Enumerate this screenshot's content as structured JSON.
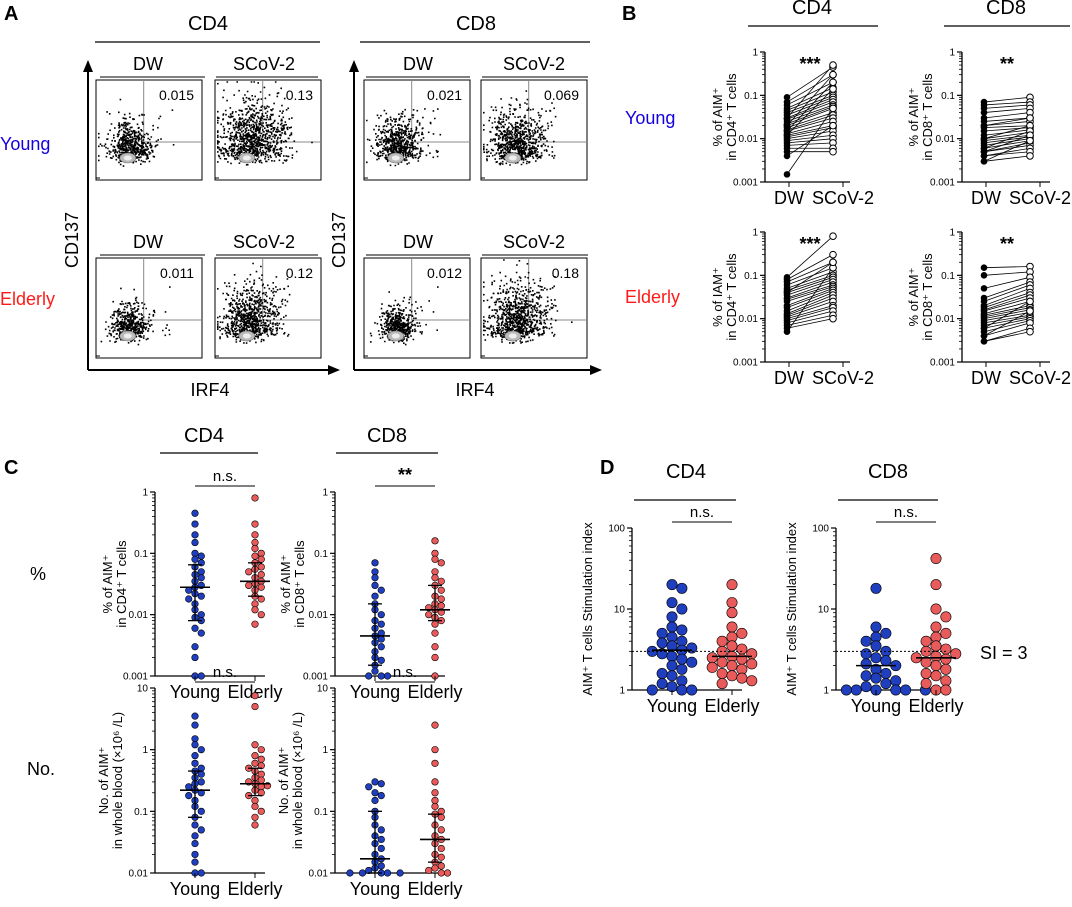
{
  "panels": {
    "A": "A",
    "B": "B",
    "C": "C",
    "D": "D"
  },
  "rows": {
    "young": "Young",
    "elderly": "Elderly"
  },
  "colors": {
    "young": "#1500e0",
    "elderly": "#ff1a1a",
    "young_fill": "#1f3fbf",
    "elderly_fill": "#e95a5a",
    "black": "#000000"
  },
  "flow": {
    "headers": {
      "cd4": "CD4",
      "cd8": "CD8"
    },
    "cols": {
      "dw": "DW",
      "scov2": "SCoV-2"
    },
    "y_axis": "CD137",
    "x_axis": "IRF4",
    "values": {
      "cd4_young_dw": "0.015",
      "cd4_young_scov2": "0.13",
      "cd4_elderly_dw": "0.011",
      "cd4_elderly_scov2": "0.12",
      "cd8_young_dw": "0.021",
      "cd8_young_scov2": "0.069",
      "cd8_elderly_dw": "0.012",
      "cd8_elderly_scov2": "0.18"
    },
    "density": {
      "cd4_young_dw": 0.45,
      "cd4_young_scov2": 1.0,
      "cd4_elderly_dw": 0.35,
      "cd4_elderly_scov2": 0.8,
      "cd8_young_dw": 0.55,
      "cd8_young_scov2": 0.75,
      "cd8_elderly_dw": 0.3,
      "cd8_elderly_scov2": 0.85
    }
  },
  "labels": {
    "cd4": "CD4",
    "cd8": "CD8",
    "dw": "DW",
    "scov2": "SCoV-2",
    "young": "Young",
    "elderly": "Elderly",
    "pct_row": "%",
    "no_row": "No.",
    "si3": "SI = 3",
    "ns": "n.s.",
    "sig3": "***",
    "sig2": "**",
    "b_y_young_cd4": "% of AIM⁺ in CD4⁺ T cells",
    "b_y_young_cd8": "% of AIM⁺ in CD8⁺ T cells",
    "b_y_elderly_cd4": "% of IAM⁺ in CD4⁺ T cells",
    "b_y_elderly_cd8": "% of AIM⁺ in CD8⁺ T cells",
    "c_y_pct_cd4": "% of AIM⁺ in CD4⁺ T cells",
    "c_y_pct_cd8": "% of AIM⁺ in CD8⁺ T cells",
    "c_y_no": "No. of AIM⁺ in whole blood (×10⁶ /L)",
    "d_y": "AIM⁺ T cells Stimulation index"
  },
  "chart_data": [
    {
      "id": "B-young-cd4",
      "type": "paired-scatter",
      "scale": "log",
      "ylim": [
        0.001,
        1
      ],
      "ticks": [
        {
          "v": 0.001,
          "t": "0.001"
        },
        {
          "v": 0.01,
          "t": "0.01"
        },
        {
          "v": 0.1,
          "t": "0.1"
        },
        {
          "v": 1,
          "t": "1"
        }
      ],
      "categories": [
        "DW",
        "SCoV-2"
      ],
      "significance": "***",
      "pairs": [
        [
          0.09,
          0.45
        ],
        [
          0.07,
          0.3
        ],
        [
          0.06,
          0.2
        ],
        [
          0.05,
          0.15
        ],
        [
          0.045,
          0.12
        ],
        [
          0.04,
          0.1
        ],
        [
          0.035,
          0.09
        ],
        [
          0.03,
          0.08
        ],
        [
          0.028,
          0.07
        ],
        [
          0.025,
          0.06
        ],
        [
          0.022,
          0.055
        ],
        [
          0.02,
          0.05
        ],
        [
          0.018,
          0.04
        ],
        [
          0.016,
          0.035
        ],
        [
          0.015,
          0.03
        ],
        [
          0.013,
          0.025
        ],
        [
          0.012,
          0.02
        ],
        [
          0.011,
          0.018
        ],
        [
          0.01,
          0.015
        ],
        [
          0.009,
          0.012
        ],
        [
          0.008,
          0.01
        ],
        [
          0.007,
          0.008
        ],
        [
          0.006,
          0.006
        ],
        [
          0.005,
          0.005
        ],
        [
          0.004,
          0.02
        ],
        [
          0.03,
          0.5
        ],
        [
          0.02,
          0.3
        ],
        [
          0.015,
          0.2
        ],
        [
          0.012,
          0.14
        ],
        [
          0.0015,
          0.05
        ]
      ]
    },
    {
      "id": "B-young-cd8",
      "type": "paired-scatter",
      "scale": "log",
      "ylim": [
        0.001,
        1
      ],
      "ticks": [
        {
          "v": 0.001,
          "t": "0.001"
        },
        {
          "v": 0.01,
          "t": "0.01"
        },
        {
          "v": 0.1,
          "t": "0.1"
        },
        {
          "v": 1,
          "t": "1"
        }
      ],
      "categories": [
        "DW",
        "SCoV-2"
      ],
      "significance": "**",
      "pairs": [
        [
          0.07,
          0.09
        ],
        [
          0.06,
          0.07
        ],
        [
          0.05,
          0.06
        ],
        [
          0.04,
          0.05
        ],
        [
          0.03,
          0.04
        ],
        [
          0.025,
          0.03
        ],
        [
          0.02,
          0.025
        ],
        [
          0.018,
          0.02
        ],
        [
          0.015,
          0.018
        ],
        [
          0.012,
          0.016
        ],
        [
          0.01,
          0.014
        ],
        [
          0.009,
          0.012
        ],
        [
          0.008,
          0.011
        ],
        [
          0.007,
          0.01
        ],
        [
          0.006,
          0.009
        ],
        [
          0.005,
          0.008
        ],
        [
          0.005,
          0.007
        ],
        [
          0.004,
          0.006
        ],
        [
          0.004,
          0.005
        ],
        [
          0.003,
          0.004
        ],
        [
          0.02,
          0.03
        ],
        [
          0.01,
          0.02
        ],
        [
          0.006,
          0.015
        ],
        [
          0.005,
          0.012
        ],
        [
          0.003,
          0.009
        ]
      ]
    },
    {
      "id": "B-elderly-cd4",
      "type": "paired-scatter",
      "scale": "log",
      "ylim": [
        0.001,
        1
      ],
      "ticks": [
        {
          "v": 0.001,
          "t": "0.001"
        },
        {
          "v": 0.01,
          "t": "0.01"
        },
        {
          "v": 0.1,
          "t": "0.1"
        },
        {
          "v": 1,
          "t": "1"
        }
      ],
      "categories": [
        "DW",
        "SCoV-2"
      ],
      "significance": "***",
      "pairs": [
        [
          0.09,
          0.8
        ],
        [
          0.08,
          0.3
        ],
        [
          0.07,
          0.2
        ],
        [
          0.06,
          0.15
        ],
        [
          0.05,
          0.12
        ],
        [
          0.045,
          0.1
        ],
        [
          0.04,
          0.09
        ],
        [
          0.035,
          0.08
        ],
        [
          0.03,
          0.07
        ],
        [
          0.028,
          0.06
        ],
        [
          0.025,
          0.055
        ],
        [
          0.02,
          0.05
        ],
        [
          0.018,
          0.045
        ],
        [
          0.015,
          0.04
        ],
        [
          0.013,
          0.035
        ],
        [
          0.012,
          0.03
        ],
        [
          0.011,
          0.025
        ],
        [
          0.01,
          0.02
        ],
        [
          0.009,
          0.018
        ],
        [
          0.008,
          0.015
        ],
        [
          0.007,
          0.012
        ],
        [
          0.006,
          0.01
        ],
        [
          0.005,
          0.15
        ],
        [
          0.04,
          0.2
        ]
      ]
    },
    {
      "id": "B-elderly-cd8",
      "type": "paired-scatter",
      "scale": "log",
      "ylim": [
        0.001,
        1
      ],
      "ticks": [
        {
          "v": 0.001,
          "t": "0.001"
        },
        {
          "v": 0.01,
          "t": "0.01"
        },
        {
          "v": 0.1,
          "t": "0.1"
        },
        {
          "v": 1,
          "t": "1"
        }
      ],
      "categories": [
        "DW",
        "SCoV-2"
      ],
      "significance": "**",
      "pairs": [
        [
          0.15,
          0.16
        ],
        [
          0.1,
          0.12
        ],
        [
          0.05,
          0.09
        ],
        [
          0.03,
          0.07
        ],
        [
          0.025,
          0.06
        ],
        [
          0.02,
          0.05
        ],
        [
          0.018,
          0.04
        ],
        [
          0.016,
          0.035
        ],
        [
          0.015,
          0.03
        ],
        [
          0.013,
          0.025
        ],
        [
          0.012,
          0.02
        ],
        [
          0.011,
          0.018
        ],
        [
          0.01,
          0.016
        ],
        [
          0.009,
          0.014
        ],
        [
          0.008,
          0.012
        ],
        [
          0.007,
          0.011
        ],
        [
          0.006,
          0.01
        ],
        [
          0.005,
          0.009
        ],
        [
          0.004,
          0.008
        ],
        [
          0.003,
          0.006
        ],
        [
          0.003,
          0.005
        ],
        [
          0.004,
          0.015
        ],
        [
          0.006,
          0.025
        ]
      ]
    },
    {
      "id": "C-pct-cd4",
      "type": "scatter-median-iqr",
      "scale": "log",
      "ylim": [
        0.001,
        1
      ],
      "ticks": [
        {
          "v": 0.001,
          "t": "0.001"
        },
        {
          "v": 0.01,
          "t": "0.01"
        },
        {
          "v": 0.1,
          "t": "0.1"
        },
        {
          "v": 1,
          "t": "1"
        }
      ],
      "categories": [
        "Young",
        "Elderly"
      ],
      "significance": "n.s.",
      "groups": [
        {
          "name": "Young",
          "median": 0.028,
          "q1": 0.008,
          "q3": 0.065,
          "values": [
            0.45,
            0.3,
            0.2,
            0.15,
            0.1,
            0.09,
            0.08,
            0.07,
            0.06,
            0.05,
            0.045,
            0.04,
            0.035,
            0.03,
            0.028,
            0.025,
            0.022,
            0.02,
            0.018,
            0.015,
            0.012,
            0.01,
            0.009,
            0.008,
            0.006,
            0.005,
            0.003,
            0.002,
            0.001,
            0.001
          ]
        },
        {
          "name": "Elderly",
          "median": 0.035,
          "q1": 0.02,
          "q3": 0.07,
          "values": [
            0.8,
            0.3,
            0.2,
            0.15,
            0.12,
            0.1,
            0.09,
            0.08,
            0.07,
            0.06,
            0.055,
            0.05,
            0.045,
            0.04,
            0.035,
            0.032,
            0.03,
            0.028,
            0.025,
            0.02,
            0.018,
            0.015,
            0.012,
            0.01,
            0.007
          ]
        }
      ]
    },
    {
      "id": "C-pct-cd8",
      "type": "scatter-median-iqr",
      "scale": "log",
      "ylim": [
        0.001,
        1
      ],
      "ticks": [
        {
          "v": 0.001,
          "t": "0.001"
        },
        {
          "v": 0.01,
          "t": "0.01"
        },
        {
          "v": 0.1,
          "t": "0.1"
        },
        {
          "v": 1,
          "t": "1"
        }
      ],
      "categories": [
        "Young",
        "Elderly"
      ],
      "significance": "**",
      "groups": [
        {
          "name": "Young",
          "median": 0.0045,
          "q1": 0.0015,
          "q3": 0.015,
          "values": [
            0.07,
            0.05,
            0.04,
            0.03,
            0.025,
            0.02,
            0.015,
            0.012,
            0.01,
            0.008,
            0.007,
            0.006,
            0.005,
            0.0045,
            0.004,
            0.0035,
            0.003,
            0.0025,
            0.002,
            0.0018,
            0.0015,
            0.0012,
            0.001,
            0.001,
            0.001
          ]
        },
        {
          "name": "Elderly",
          "median": 0.012,
          "q1": 0.008,
          "q3": 0.03,
          "values": [
            0.16,
            0.1,
            0.08,
            0.07,
            0.05,
            0.04,
            0.035,
            0.03,
            0.025,
            0.02,
            0.018,
            0.015,
            0.014,
            0.013,
            0.012,
            0.011,
            0.01,
            0.009,
            0.008,
            0.007,
            0.005,
            0.003,
            0.002,
            0.001
          ]
        }
      ]
    },
    {
      "id": "C-no-cd4",
      "type": "scatter-median-iqr",
      "scale": "log",
      "ylim": [
        0.01,
        10
      ],
      "ticks": [
        {
          "v": 0.01,
          "t": "0.01"
        },
        {
          "v": 0.1,
          "t": "0.1"
        },
        {
          "v": 1,
          "t": "1"
        },
        {
          "v": 10,
          "t": "10"
        }
      ],
      "categories": [
        "Young",
        "Elderly"
      ],
      "significance": "n.s.",
      "groups": [
        {
          "name": "Young",
          "median": 0.22,
          "q1": 0.08,
          "q3": 0.45,
          "values": [
            3.5,
            2.5,
            1.5,
            1.2,
            1,
            0.8,
            0.6,
            0.5,
            0.45,
            0.4,
            0.35,
            0.3,
            0.28,
            0.25,
            0.22,
            0.2,
            0.18,
            0.15,
            0.12,
            0.1,
            0.08,
            0.06,
            0.05,
            0.04,
            0.03,
            0.02,
            0.015,
            0.01,
            0.01
          ]
        },
        {
          "name": "Elderly",
          "median": 0.28,
          "q1": 0.18,
          "q3": 0.5,
          "values": [
            7.5,
            5,
            1.2,
            1,
            0.8,
            0.7,
            0.6,
            0.55,
            0.5,
            0.45,
            0.4,
            0.35,
            0.32,
            0.3,
            0.28,
            0.26,
            0.25,
            0.22,
            0.2,
            0.18,
            0.15,
            0.12,
            0.1,
            0.08,
            0.06
          ]
        }
      ]
    },
    {
      "id": "C-no-cd8",
      "type": "scatter-median-iqr",
      "scale": "log",
      "ylim": [
        0.01,
        10
      ],
      "ticks": [
        {
          "v": 0.01,
          "t": "0.01"
        },
        {
          "v": 0.1,
          "t": "0.1"
        },
        {
          "v": 1,
          "t": "1"
        },
        {
          "v": 10,
          "t": "10"
        }
      ],
      "categories": [
        "Young",
        "Elderly"
      ],
      "significance": "n.s.",
      "groups": [
        {
          "name": "Young",
          "median": 0.017,
          "q1": 0.01,
          "q3": 0.1,
          "values": [
            0.3,
            0.28,
            0.25,
            0.2,
            0.18,
            0.15,
            0.1,
            0.08,
            0.06,
            0.05,
            0.04,
            0.035,
            0.03,
            0.025,
            0.02,
            0.017,
            0.015,
            0.013,
            0.012,
            0.011,
            0.01,
            0.01,
            0.01,
            0.01,
            0.01
          ]
        },
        {
          "name": "Elderly",
          "median": 0.035,
          "q1": 0.015,
          "q3": 0.09,
          "values": [
            2.5,
            1,
            0.6,
            0.3,
            0.2,
            0.15,
            0.12,
            0.1,
            0.09,
            0.08,
            0.06,
            0.05,
            0.04,
            0.035,
            0.03,
            0.025,
            0.02,
            0.018,
            0.015,
            0.013,
            0.012,
            0.011,
            0.01,
            0.01
          ]
        }
      ]
    },
    {
      "id": "D-cd4",
      "type": "scatter-median",
      "scale": "log",
      "ylim": [
        1,
        100
      ],
      "ticks": [
        {
          "v": 1,
          "t": "1"
        },
        {
          "v": 10,
          "t": "10"
        },
        {
          "v": 100,
          "t": "100"
        }
      ],
      "categories": [
        "Young",
        "Elderly"
      ],
      "significance": "n.s.",
      "threshold": 3,
      "groups": [
        {
          "name": "Young",
          "median": 3.1,
          "values": [
            20,
            18,
            12,
            10,
            8,
            6,
            5.5,
            5,
            4.5,
            4,
            3.8,
            3.5,
            3.3,
            3.1,
            3,
            2.8,
            2.6,
            2.4,
            2.2,
            2,
            1.8,
            1.6,
            1.5,
            1.3,
            1.2,
            1.1,
            1,
            1,
            1
          ]
        },
        {
          "name": "Elderly",
          "median": 2.6,
          "values": [
            20,
            12,
            9,
            6,
            5,
            4.5,
            4,
            3.5,
            3.2,
            3,
            2.8,
            2.6,
            2.5,
            2.4,
            2.2,
            2.1,
            2,
            1.9,
            1.8,
            1.6,
            1.5,
            1.4,
            1.3,
            1.2
          ]
        }
      ]
    },
    {
      "id": "D-cd8",
      "type": "scatter-median",
      "scale": "log",
      "ylim": [
        1,
        100
      ],
      "ticks": [
        {
          "v": 1,
          "t": "1"
        },
        {
          "v": 10,
          "t": "10"
        },
        {
          "v": 100,
          "t": "100"
        }
      ],
      "categories": [
        "Young",
        "Elderly"
      ],
      "significance": "n.s.",
      "threshold": 3,
      "groups": [
        {
          "name": "Young",
          "median": 2.0,
          "values": [
            18,
            6,
            5,
            4.5,
            4,
            3.5,
            3,
            2.8,
            2.5,
            2.3,
            2.1,
            2,
            1.8,
            1.6,
            1.5,
            1.4,
            1.3,
            1.2,
            1.1,
            1,
            1,
            1,
            1,
            1,
            1
          ]
        },
        {
          "name": "Elderly",
          "median": 2.5,
          "values": [
            42,
            20,
            10,
            8,
            6,
            5,
            4.5,
            4,
            3.5,
            3.2,
            3,
            2.8,
            2.6,
            2.5,
            2.4,
            2.2,
            2,
            1.8,
            1.6,
            1.5,
            1.3,
            1.2,
            1,
            1
          ]
        }
      ]
    }
  ]
}
